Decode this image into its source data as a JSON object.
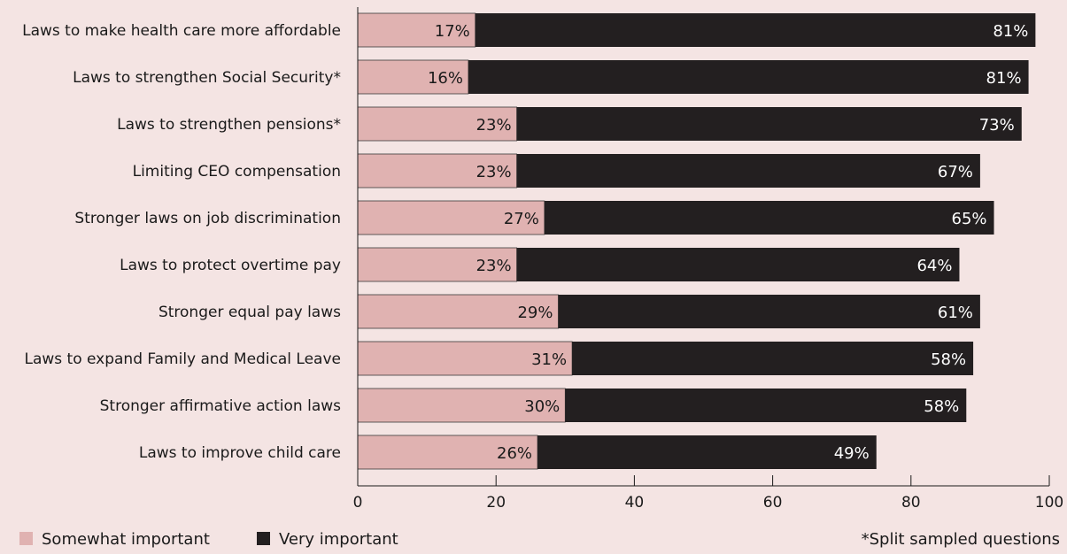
{
  "chart_data": {
    "type": "bar",
    "orientation": "horizontal",
    "stacked": true,
    "categories": [
      "Laws to make health care more affordable",
      "Laws to strengthen Social Security*",
      "Laws to strengthen pensions*",
      "Limiting CEO compensation",
      "Stronger laws on job discrimination",
      "Laws to protect overtime pay",
      "Stronger equal pay laws",
      "Laws to expand Family and Medical Leave",
      "Stronger affirmative action laws",
      "Laws to improve child care"
    ],
    "series": [
      {
        "name": "Somewhat important",
        "color": "#e0b2b1",
        "values": [
          17,
          16,
          23,
          23,
          27,
          23,
          29,
          31,
          30,
          26
        ],
        "labels": [
          "17%",
          "16%",
          "23%",
          "23%",
          "27%",
          "23%",
          "29%",
          "31%",
          "30%",
          "26%"
        ]
      },
      {
        "name": "Very important",
        "color": "#231f20",
        "values": [
          81,
          81,
          73,
          67,
          65,
          64,
          61,
          58,
          58,
          49
        ],
        "labels": [
          "81%",
          "81%",
          "73%",
          "67%",
          "65%",
          "64%",
          "61%",
          "58%",
          "58%",
          "49%"
        ]
      }
    ],
    "xlim": [
      0,
      100
    ],
    "xticks": [
      0,
      20,
      40,
      60,
      80,
      100
    ],
    "grid": false,
    "legend_position": "bottom-left",
    "footnote": "*Split sampled questions"
  }
}
